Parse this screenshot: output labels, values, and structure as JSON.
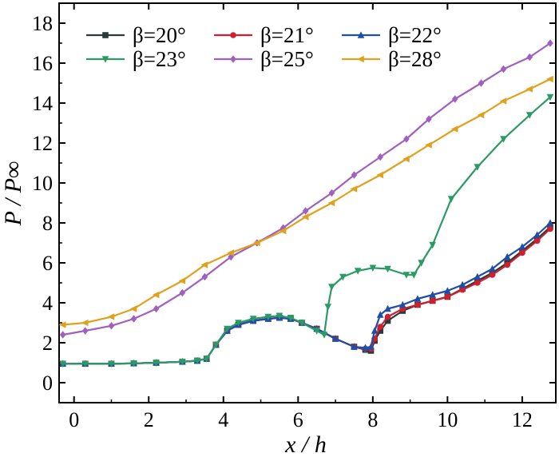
{
  "chart_data": {
    "type": "line",
    "title": "",
    "xlabel": "x / h",
    "ylabel": "P / P∞",
    "xlim": [
      -0.4,
      12.9
    ],
    "ylim": [
      -1,
      19
    ],
    "xticks": [
      0,
      2,
      4,
      6,
      8,
      10,
      12
    ],
    "yticks": [
      0,
      2,
      4,
      6,
      8,
      10,
      12,
      14,
      16,
      18
    ],
    "grid": false,
    "legend_placement": "top",
    "series": [
      {
        "name": "β=20°",
        "color": "#2a3a3a",
        "marker": "square",
        "x": [
          -0.3,
          0.3,
          1.0,
          1.6,
          2.2,
          2.9,
          3.3,
          3.55,
          3.8,
          4.1,
          4.4,
          4.8,
          5.2,
          5.5,
          5.8,
          6.1,
          6.5,
          7.0,
          7.5,
          7.8,
          7.95,
          8.05,
          8.2,
          8.4,
          8.8,
          9.2,
          9.6,
          10.0,
          10.4,
          10.8,
          11.2,
          11.6,
          12.0,
          12.4,
          12.75
        ],
        "y": [
          0.95,
          0.95,
          0.95,
          0.97,
          1.0,
          1.05,
          1.1,
          1.2,
          1.9,
          2.6,
          2.9,
          3.1,
          3.2,
          3.25,
          3.2,
          3.0,
          2.7,
          2.2,
          1.8,
          1.65,
          1.6,
          2.1,
          2.6,
          3.1,
          3.6,
          3.9,
          4.1,
          4.3,
          4.7,
          5.1,
          5.5,
          6.0,
          6.6,
          7.2,
          7.8
        ]
      },
      {
        "name": "β=21°",
        "color": "#d21f2e",
        "marker": "circle",
        "x": [
          -0.3,
          0.3,
          1.0,
          1.6,
          2.2,
          2.9,
          3.3,
          3.55,
          3.8,
          4.1,
          4.4,
          4.8,
          5.2,
          5.5,
          5.8,
          6.1,
          6.5,
          7.0,
          7.5,
          7.8,
          7.95,
          8.05,
          8.2,
          8.4,
          8.8,
          9.2,
          9.6,
          10.0,
          10.4,
          10.8,
          11.2,
          11.6,
          12.0,
          12.4,
          12.75
        ],
        "y": [
          0.95,
          0.95,
          0.95,
          0.97,
          1.0,
          1.05,
          1.1,
          1.2,
          1.9,
          2.6,
          2.9,
          3.1,
          3.2,
          3.25,
          3.2,
          3.0,
          2.7,
          2.2,
          1.8,
          1.7,
          1.7,
          2.2,
          2.8,
          3.3,
          3.7,
          3.9,
          4.1,
          4.3,
          4.65,
          5.0,
          5.4,
          5.9,
          6.5,
          7.1,
          7.7
        ]
      },
      {
        "name": "β=22°",
        "color": "#1f4ea8",
        "marker": "triangle-up",
        "x": [
          -0.3,
          0.3,
          1.0,
          1.6,
          2.2,
          2.9,
          3.3,
          3.55,
          3.8,
          4.1,
          4.4,
          4.8,
          5.2,
          5.5,
          5.8,
          6.1,
          6.5,
          7.0,
          7.5,
          7.8,
          7.95,
          8.05,
          8.2,
          8.4,
          8.8,
          9.2,
          9.6,
          10.0,
          10.4,
          10.8,
          11.2,
          11.6,
          12.0,
          12.4,
          12.75
        ],
        "y": [
          0.95,
          0.95,
          0.95,
          0.97,
          1.0,
          1.05,
          1.1,
          1.2,
          1.9,
          2.6,
          2.9,
          3.1,
          3.2,
          3.25,
          3.2,
          3.0,
          2.7,
          2.2,
          1.8,
          1.75,
          1.8,
          2.6,
          3.4,
          3.7,
          3.9,
          4.2,
          4.4,
          4.6,
          4.9,
          5.3,
          5.7,
          6.3,
          6.8,
          7.4,
          8.0
        ]
      },
      {
        "name": "β=23°",
        "color": "#2a9a66",
        "marker": "triangle-down",
        "x": [
          -0.3,
          0.3,
          1.0,
          1.6,
          2.2,
          2.9,
          3.3,
          3.55,
          3.8,
          4.1,
          4.4,
          4.8,
          5.2,
          5.5,
          5.8,
          6.1,
          6.5,
          6.7,
          6.8,
          6.9,
          7.2,
          7.6,
          8.0,
          8.4,
          8.9,
          9.1,
          9.3,
          9.6,
          10.1,
          10.8,
          11.5,
          12.2,
          12.75
        ],
        "y": [
          0.95,
          0.95,
          0.95,
          0.97,
          1.0,
          1.05,
          1.1,
          1.2,
          1.9,
          2.7,
          3.0,
          3.2,
          3.3,
          3.35,
          3.25,
          3.0,
          2.6,
          2.4,
          3.8,
          4.8,
          5.3,
          5.6,
          5.75,
          5.7,
          5.4,
          5.4,
          6.0,
          6.9,
          9.2,
          10.8,
          12.2,
          13.4,
          14.3
        ]
      },
      {
        "name": "β=25°",
        "color": "#a060c0",
        "marker": "diamond",
        "x": [
          -0.3,
          0.3,
          1.0,
          1.6,
          2.2,
          2.9,
          3.5,
          4.2,
          4.9,
          5.6,
          6.2,
          6.9,
          7.5,
          8.2,
          8.9,
          9.5,
          10.2,
          10.9,
          11.5,
          12.2,
          12.75
        ],
        "y": [
          2.4,
          2.6,
          2.85,
          3.2,
          3.7,
          4.5,
          5.3,
          6.3,
          7.0,
          7.75,
          8.6,
          9.5,
          10.4,
          11.3,
          12.2,
          13.2,
          14.2,
          15.0,
          15.7,
          16.3,
          17.0
        ]
      },
      {
        "name": "β=28°",
        "color": "#e0a21e",
        "marker": "triangle-left",
        "x": [
          -0.3,
          0.3,
          1.0,
          1.6,
          2.2,
          2.9,
          3.5,
          4.2,
          4.9,
          5.6,
          6.2,
          6.9,
          7.5,
          8.2,
          8.9,
          9.5,
          10.2,
          10.9,
          11.5,
          12.2,
          12.75
        ],
        "y": [
          2.9,
          3.0,
          3.3,
          3.7,
          4.4,
          5.1,
          5.9,
          6.5,
          7.0,
          7.6,
          8.3,
          9.0,
          9.7,
          10.4,
          11.2,
          11.9,
          12.7,
          13.4,
          14.1,
          14.7,
          15.2
        ]
      }
    ]
  }
}
